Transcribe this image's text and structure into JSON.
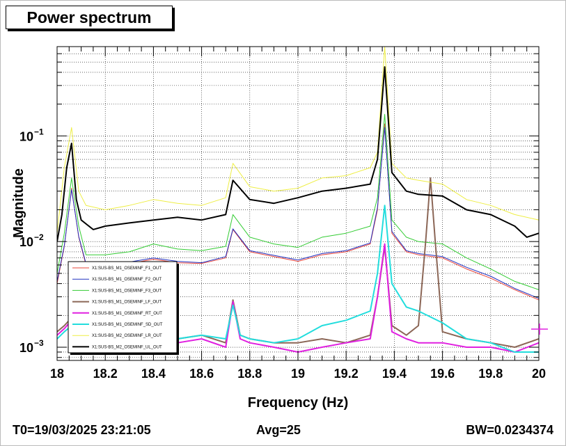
{
  "footer": {
    "t0": "T0=19/03/2025 23:21:05",
    "avg": "Avg=25",
    "bw": "BW=0.0234374"
  },
  "colors": {
    "background": "#ffffff",
    "grid": "#000000"
  },
  "chart_data": {
    "type": "line",
    "title": "Power spectrum",
    "xlabel": "Frequency (Hz)",
    "ylabel": "Magnitude",
    "xlim": [
      18,
      20
    ],
    "ylim": [
      0.00075,
      0.7
    ],
    "yscale": "log",
    "grid": true,
    "legend_position": "bottom-left",
    "x_ticks": [
      {
        "value": 18,
        "label": "18"
      },
      {
        "value": 18.2,
        "label": "18.2"
      },
      {
        "value": 18.4,
        "label": "18.4"
      },
      {
        "value": 18.6,
        "label": "18.6"
      },
      {
        "value": 18.8,
        "label": "18.8"
      },
      {
        "value": 19,
        "label": "19"
      },
      {
        "value": 19.2,
        "label": "19.2"
      },
      {
        "value": 19.4,
        "label": "19.4"
      },
      {
        "value": 19.6,
        "label": "19.6"
      },
      {
        "value": 19.8,
        "label": "19.8"
      },
      {
        "value": 20,
        "label": "20"
      }
    ],
    "y_ticks": [
      {
        "value": 0.001,
        "base": "10",
        "exp": "−3"
      },
      {
        "value": 0.01,
        "base": "10",
        "exp": "−2"
      },
      {
        "value": 0.1,
        "base": "10",
        "exp": "−1"
      }
    ],
    "series": [
      {
        "name": "X1:SUS-BS_M1_OSEMINF_F1_OUT",
        "color": "#e8443a",
        "width": 1,
        "x": [
          18,
          18.03,
          18.06,
          18.09,
          18.12,
          18.2,
          18.3,
          18.4,
          18.5,
          18.6,
          18.7,
          18.73,
          18.8,
          18.9,
          19,
          19.1,
          19.2,
          19.3,
          19.33,
          19.36,
          19.39,
          19.45,
          19.5,
          19.6,
          19.7,
          19.8,
          19.9,
          20
        ],
        "y": [
          0.004,
          0.009,
          0.032,
          0.011,
          0.006,
          0.006,
          0.0062,
          0.0068,
          0.0063,
          0.0062,
          0.007,
          0.013,
          0.008,
          0.0072,
          0.0065,
          0.0075,
          0.008,
          0.0095,
          0.02,
          0.13,
          0.012,
          0.008,
          0.0075,
          0.007,
          0.0055,
          0.0045,
          0.0035,
          0.0028
        ]
      },
      {
        "name": "X1:SUS-BS_M1_OSEMINF_F2_OUT",
        "color": "#2030c0",
        "width": 1,
        "x": [
          18,
          18.03,
          18.06,
          18.09,
          18.12,
          18.2,
          18.3,
          18.4,
          18.5,
          18.6,
          18.7,
          18.73,
          18.8,
          18.9,
          19,
          19.1,
          19.2,
          19.3,
          19.33,
          19.36,
          19.39,
          19.45,
          19.5,
          19.6,
          19.7,
          19.8,
          19.9,
          20
        ],
        "y": [
          0.0042,
          0.0092,
          0.031,
          0.0112,
          0.0062,
          0.0061,
          0.0064,
          0.007,
          0.0065,
          0.0063,
          0.0072,
          0.0132,
          0.0082,
          0.0074,
          0.0067,
          0.0077,
          0.0082,
          0.0097,
          0.021,
          0.12,
          0.0125,
          0.0082,
          0.0077,
          0.0072,
          0.0057,
          0.0047,
          0.0036,
          0.0029
        ]
      },
      {
        "name": "X1:SUS-BS_M1_OSEMINF_F3_OUT",
        "color": "#33cc33",
        "width": 1,
        "x": [
          18,
          18.03,
          18.06,
          18.09,
          18.12,
          18.2,
          18.3,
          18.4,
          18.5,
          18.6,
          18.7,
          18.73,
          18.8,
          18.9,
          19,
          19.1,
          19.2,
          19.3,
          19.33,
          19.36,
          19.39,
          19.45,
          19.5,
          19.6,
          19.7,
          19.8,
          19.9,
          20
        ],
        "y": [
          0.005,
          0.012,
          0.04,
          0.014,
          0.0075,
          0.0075,
          0.008,
          0.0095,
          0.0085,
          0.0082,
          0.009,
          0.018,
          0.011,
          0.0095,
          0.0088,
          0.011,
          0.012,
          0.014,
          0.026,
          0.16,
          0.016,
          0.011,
          0.01,
          0.0095,
          0.007,
          0.0055,
          0.0042,
          0.0035
        ]
      },
      {
        "name": "X1:SUS-BS_M1_OSEMINF_LF_OUT",
        "color": "#8b6656",
        "width": 2,
        "x": [
          18,
          18.03,
          18.06,
          18.09,
          18.12,
          18.2,
          18.3,
          18.4,
          18.5,
          18.6,
          18.7,
          18.73,
          18.76,
          18.8,
          18.9,
          19,
          19.1,
          19.2,
          19.3,
          19.33,
          19.36,
          19.39,
          19.45,
          19.5,
          19.53,
          19.55,
          19.57,
          19.6,
          19.7,
          19.8,
          19.9,
          20
        ],
        "y": [
          0.0014,
          0.0016,
          0.0019,
          0.0015,
          0.0013,
          0.0012,
          0.0013,
          0.0011,
          0.0012,
          0.0013,
          0.0011,
          0.0028,
          0.0013,
          0.0012,
          0.0011,
          0.0011,
          0.0012,
          0.0011,
          0.0013,
          0.003,
          0.009,
          0.0016,
          0.0013,
          0.0016,
          0.01,
          0.04,
          0.01,
          0.0014,
          0.0012,
          0.0011,
          0.001,
          0.0012
        ]
      },
      {
        "name": "X1:SUS-BS_M1_OSEMINF_RT_OUT",
        "color": "#e020e0",
        "width": 2,
        "x": [
          18,
          18.03,
          18.06,
          18.09,
          18.12,
          18.2,
          18.3,
          18.4,
          18.5,
          18.6,
          18.7,
          18.73,
          18.76,
          18.8,
          18.9,
          19,
          19.1,
          19.2,
          19.3,
          19.33,
          19.36,
          19.39,
          19.45,
          19.5,
          19.6,
          19.7,
          19.8,
          19.9,
          20
        ],
        "y": [
          0.0013,
          0.0015,
          0.0018,
          0.0014,
          0.0012,
          0.0011,
          0.0012,
          0.001,
          0.0011,
          0.0012,
          0.001,
          0.0027,
          0.0012,
          0.0011,
          0.001,
          0.0009,
          0.001,
          0.0011,
          0.0012,
          0.003,
          0.0095,
          0.0014,
          0.0012,
          0.0011,
          0.0011,
          0.001,
          0.001,
          0.0009,
          0.0011
        ]
      },
      {
        "name": "X1:SUS-BS_M1_OSEMINF_SD_OUT",
        "color": "#22dddd",
        "width": 2,
        "x": [
          18,
          18.03,
          18.06,
          18.09,
          18.12,
          18.2,
          18.3,
          18.4,
          18.5,
          18.6,
          18.7,
          18.73,
          18.76,
          18.8,
          18.9,
          19,
          19.1,
          19.2,
          19.3,
          19.33,
          19.36,
          19.39,
          19.45,
          19.5,
          19.6,
          19.7,
          19.8,
          19.9,
          20
        ],
        "y": [
          0.0012,
          0.0014,
          0.0016,
          0.0013,
          0.0012,
          0.0012,
          0.0013,
          0.0012,
          0.0012,
          0.0013,
          0.0012,
          0.0025,
          0.0013,
          0.0012,
          0.0011,
          0.0012,
          0.0016,
          0.0018,
          0.0022,
          0.005,
          0.022,
          0.004,
          0.0024,
          0.0022,
          0.0017,
          0.0012,
          0.0011,
          0.0009,
          0.0009
        ]
      },
      {
        "name": "X1:SUS-BS_M2_OSEMINF_LR_OUT",
        "color": "#eeee44",
        "width": 1,
        "x": [
          18,
          18.03,
          18.06,
          18.09,
          18.12,
          18.2,
          18.3,
          18.4,
          18.5,
          18.6,
          18.7,
          18.73,
          18.8,
          18.9,
          19,
          19.1,
          19.2,
          19.3,
          19.33,
          19.36,
          19.39,
          19.45,
          19.5,
          19.6,
          19.7,
          19.8,
          19.9,
          20
        ],
        "y": [
          0.012,
          0.05,
          0.12,
          0.03,
          0.022,
          0.02,
          0.022,
          0.025,
          0.023,
          0.022,
          0.026,
          0.055,
          0.033,
          0.03,
          0.032,
          0.04,
          0.042,
          0.05,
          0.07,
          0.7,
          0.055,
          0.04,
          0.038,
          0.035,
          0.025,
          0.022,
          0.018,
          0.016
        ]
      },
      {
        "name": "X1:SUS-BS_M2_OSEMINF_UL_OUT",
        "color": "#000000",
        "width": 2,
        "x": [
          18,
          18.02,
          18.04,
          18.06,
          18.08,
          18.1,
          18.15,
          18.2,
          18.3,
          18.4,
          18.5,
          18.6,
          18.7,
          18.73,
          18.8,
          18.9,
          19,
          19.1,
          19.2,
          19.3,
          19.33,
          19.36,
          19.39,
          19.45,
          19.5,
          19.6,
          19.7,
          19.8,
          19.9,
          19.95,
          20
        ],
        "y": [
          0.01,
          0.018,
          0.05,
          0.085,
          0.025,
          0.016,
          0.013,
          0.014,
          0.015,
          0.016,
          0.017,
          0.016,
          0.018,
          0.038,
          0.025,
          0.023,
          0.026,
          0.03,
          0.032,
          0.035,
          0.06,
          0.45,
          0.045,
          0.03,
          0.028,
          0.027,
          0.02,
          0.018,
          0.014,
          0.011,
          0.012
        ]
      }
    ]
  }
}
